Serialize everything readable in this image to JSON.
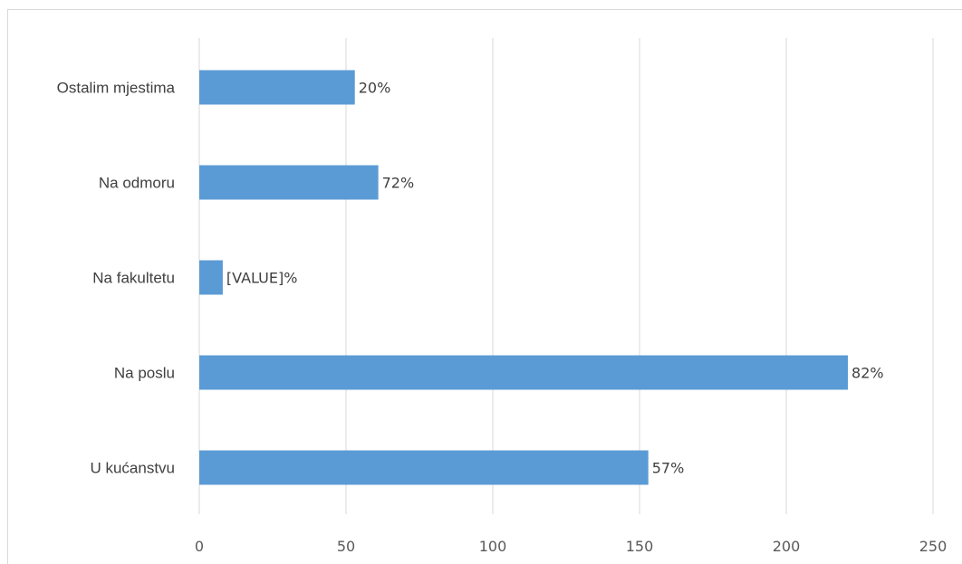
{
  "chart_data": {
    "type": "bar",
    "orientation": "horizontal",
    "categories": [
      "Ostalim mjestima",
      "Na odmoru",
      "Na fakultetu",
      "Na poslu",
      "U kućanstvu"
    ],
    "values": [
      53,
      61,
      8,
      221,
      153
    ],
    "data_labels": [
      "20%",
      "72%",
      "[VALUE]%",
      "82%",
      "57%"
    ],
    "xlim": [
      0,
      250
    ],
    "x_ticks": [
      "0",
      "50",
      "100",
      "150",
      "200",
      "250"
    ],
    "grid": true,
    "bar_color": "#5b9bd5",
    "grid_color": "#d9d9d9",
    "legend": "none"
  }
}
